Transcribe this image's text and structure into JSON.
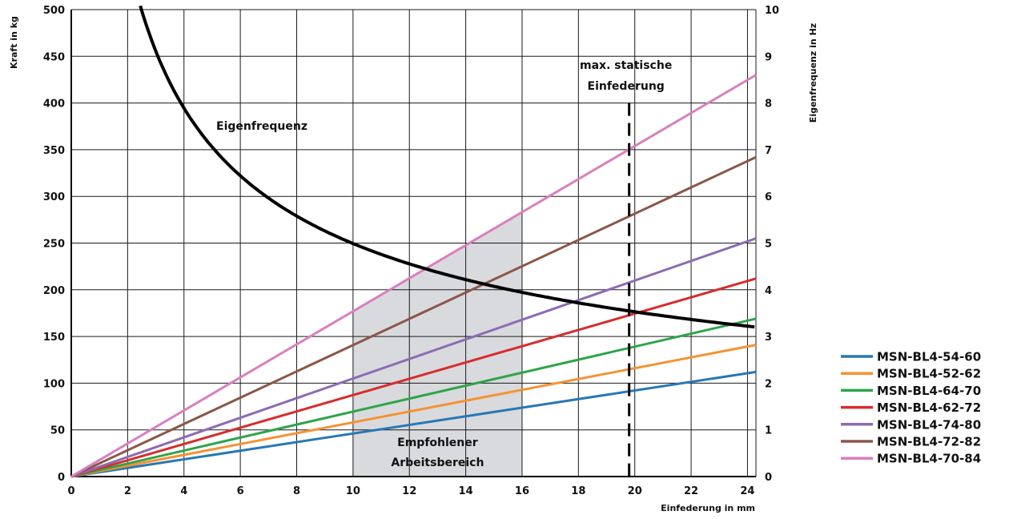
{
  "chart_data": {
    "type": "line",
    "x_label": "Einfederung in mm",
    "y_left_label": "Kraft in kg",
    "y_right_label": "Eigenfrequenz in Hz",
    "x_range": [
      0,
      24.3
    ],
    "y_left_range": [
      0,
      500
    ],
    "y_right_range": [
      0,
      10
    ],
    "x_ticks": [
      0,
      2,
      4,
      6,
      8,
      10,
      12,
      14,
      16,
      18,
      20,
      22,
      24
    ],
    "y_left_ticks": [
      0,
      50,
      100,
      150,
      200,
      250,
      300,
      350,
      400,
      450,
      500
    ],
    "y_right_ticks": [
      0,
      1,
      2,
      3,
      4,
      5,
      6,
      7,
      8,
      9,
      10
    ],
    "grid": true,
    "legend_position": "bottom-right",
    "series": [
      {
        "name": "MSN-BL4-54-60",
        "color": "#2878b4",
        "x": [
          0,
          24.3
        ],
        "y": [
          0,
          112
        ]
      },
      {
        "name": "MSN-BL4-52-62",
        "color": "#f59233",
        "x": [
          0,
          24.3
        ],
        "y": [
          0,
          141
        ]
      },
      {
        "name": "MSN-BL4-64-70",
        "color": "#2ea44a",
        "x": [
          0,
          24.3
        ],
        "y": [
          0,
          169
        ]
      },
      {
        "name": "MSN-BL4-62-72",
        "color": "#d62d2d",
        "x": [
          0,
          24.3
        ],
        "y": [
          0,
          212
        ]
      },
      {
        "name": "MSN-BL4-74-80",
        "color": "#8c6bb3",
        "x": [
          0,
          24.3
        ],
        "y": [
          0,
          255
        ]
      },
      {
        "name": "MSN-BL4-72-82",
        "color": "#8b5648",
        "x": [
          0,
          24.3
        ],
        "y": [
          0,
          342
        ]
      },
      {
        "name": "MSN-BL4-70-84",
        "color": "#d97fbf",
        "x": [
          0,
          24.3
        ],
        "y": [
          0,
          430
        ]
      }
    ],
    "frequency_curve": {
      "label": "Eigenfrequenz",
      "color": "#000000",
      "axis": "right",
      "x_start": 2.45,
      "x": [
        2.45,
        3,
        4,
        5,
        6,
        8,
        10,
        12,
        14,
        16,
        18,
        20,
        22,
        24.3
      ],
      "y": [
        10.0,
        9.1,
        7.9,
        7.05,
        6.44,
        5.58,
        4.99,
        4.55,
        4.22,
        3.94,
        3.72,
        3.53,
        3.36,
        3.2
      ]
    },
    "recommended_range": {
      "label_line1": "Empfohlener",
      "label_line2": "Arbeitsbereich",
      "x_from": 10,
      "x_to": 16,
      "fill": "#d9dadd"
    },
    "max_static_deflection": {
      "label_line1": "max. statische",
      "label_line2": "Einfederung",
      "x": 19.8,
      "top_value": 400
    }
  }
}
